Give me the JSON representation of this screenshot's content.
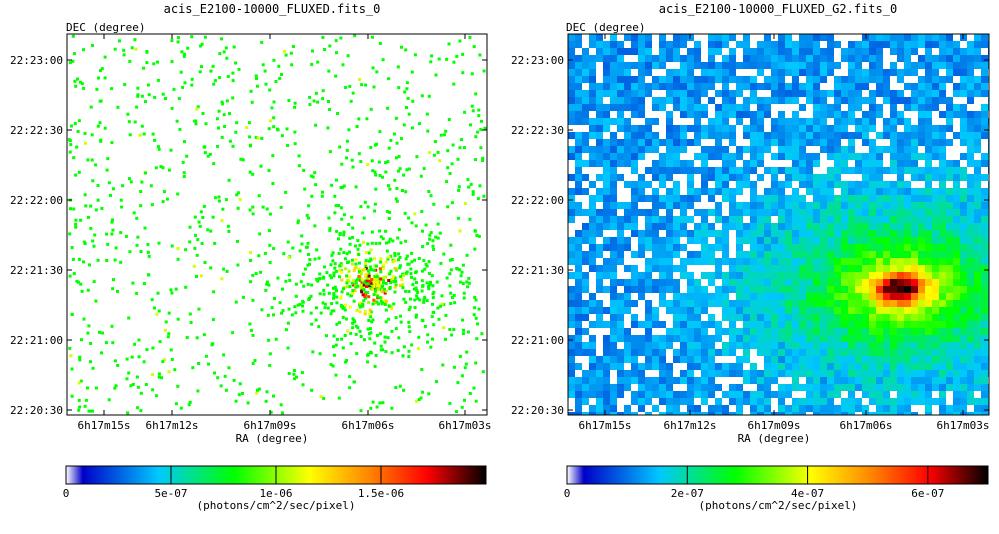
{
  "chart_data": [
    {
      "type": "heatmap",
      "title": "acis_E2100-10000_FLUXED.fits_0",
      "xlabel": "RA (degree)",
      "ylabel": "DEC (degree)",
      "x_ticks": [
        "6h17m15s",
        "6h17m12s",
        "6h17m09s",
        "6h17m06s",
        "6h17m03s"
      ],
      "y_ticks": [
        "22:23:00",
        "22:22:30",
        "22:22:00",
        "22:21:30",
        "22:21:00",
        "22:20:30"
      ],
      "colorbar": {
        "label": "(photons/cm^2/sec/pixel)",
        "ticks": [
          "0",
          "5e-07",
          "1e-06",
          "1.5e-06"
        ],
        "tick_values": [
          0,
          5e-07,
          1e-06,
          1.5e-06
        ],
        "range": [
          0,
          2e-06
        ]
      },
      "style": "sparse",
      "peak": {
        "ra_fraction": 0.72,
        "dec_fraction": 0.65
      },
      "colormap": [
        "#ffffff",
        "#0000c8",
        "#00c8ff",
        "#00ff00",
        "#ffff00",
        "#ff8800",
        "#ff0000",
        "#000000"
      ]
    },
    {
      "type": "heatmap",
      "title": "acis_E2100-10000_FLUXED_G2.fits_0",
      "xlabel": "RA (degree)",
      "ylabel": "DEC (degree)",
      "x_ticks": [
        "6h17m15s",
        "6h17m12s",
        "6h17m09s",
        "6h17m06s",
        "6h17m03s"
      ],
      "y_ticks": [
        "22:23:00",
        "22:22:30",
        "22:22:00",
        "22:21:30",
        "22:21:00",
        "22:20:30"
      ],
      "colorbar": {
        "label": "(photons/cm^2/sec/pixel)",
        "ticks": [
          "0",
          "2e-07",
          "4e-07",
          "6e-07"
        ],
        "tick_values": [
          0,
          2e-07,
          4e-07,
          6e-07
        ],
        "range": [
          0,
          7e-07
        ]
      },
      "style": "smoothed",
      "peak": {
        "ra_fraction": 0.78,
        "dec_fraction": 0.66
      },
      "colormap": [
        "#ffffff",
        "#0000c8",
        "#00c8ff",
        "#00ff00",
        "#ffff00",
        "#ff8800",
        "#ff0000",
        "#000000"
      ]
    }
  ]
}
